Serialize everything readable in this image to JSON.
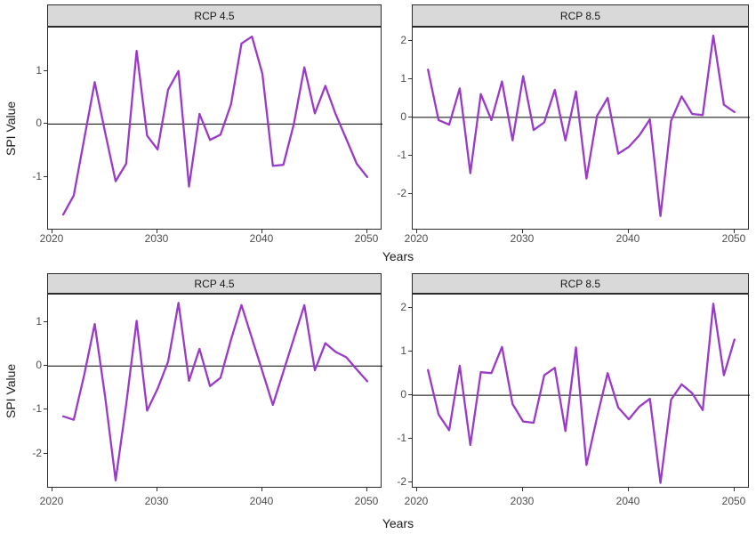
{
  "figure": {
    "y_axis_title": "SPI Value",
    "x_axis_title": "Years",
    "line_color": "#9A3AC8",
    "zero_line_color": "#000000",
    "strip_fill": "#d9d9d9",
    "border_color": "#2b2b2b",
    "tick_text_color": "#4d4d4d"
  },
  "chart_data": [
    {
      "type": "line",
      "facet": "RCP 4.5",
      "row": 0,
      "col": 0,
      "xlabel": "Years",
      "ylabel": "SPI Value",
      "xlim": [
        2019.55,
        2051.45
      ],
      "ylim": [
        -2.01,
        1.82
      ],
      "x_ticks": [
        2020,
        2030,
        2040,
        2050
      ],
      "y_ticks": [
        -1,
        0,
        1
      ],
      "hline": 0,
      "grid": false,
      "legend": "none",
      "x": [
        2021,
        2022,
        2023,
        2024,
        2025,
        2026,
        2027,
        2028,
        2029,
        2030,
        2031,
        2032,
        2033,
        2034,
        2035,
        2036,
        2037,
        2038,
        2039,
        2040,
        2041,
        2042,
        2043,
        2044,
        2045,
        2046,
        2047,
        2048,
        2049,
        2050
      ],
      "values": [
        -1.71,
        -1.35,
        -0.28,
        0.79,
        -0.16,
        -1.08,
        -0.75,
        1.38,
        -0.22,
        -0.48,
        0.65,
        1.0,
        -1.18,
        0.19,
        -0.3,
        -0.2,
        0.37,
        1.52,
        1.65,
        0.95,
        -0.79,
        -0.77,
        0.0,
        1.07,
        0.2,
        0.72,
        0.18,
        -0.28,
        -0.75,
        -1.0
      ]
    },
    {
      "type": "line",
      "facet": "RCP 8.5",
      "row": 0,
      "col": 1,
      "xlabel": "Years",
      "ylabel": "SPI Value",
      "xlim": [
        2019.55,
        2051.45
      ],
      "ylim": [
        -2.96,
        2.35
      ],
      "x_ticks": [
        2020,
        2030,
        2040,
        2050
      ],
      "y_ticks": [
        -2,
        -1,
        0,
        1,
        2
      ],
      "hline": 0,
      "grid": false,
      "legend": "none",
      "x": [
        2021,
        2022,
        2023,
        2024,
        2025,
        2026,
        2027,
        2028,
        2029,
        2030,
        2031,
        2032,
        2033,
        2034,
        2035,
        2036,
        2037,
        2038,
        2039,
        2040,
        2041,
        2042,
        2043,
        2044,
        2045,
        2046,
        2047,
        2048,
        2049,
        2050
      ],
      "values": [
        1.25,
        -0.07,
        -0.19,
        0.76,
        -1.46,
        0.61,
        -0.07,
        0.94,
        -0.6,
        1.08,
        -0.33,
        -0.13,
        0.72,
        -0.6,
        0.68,
        -1.6,
        0.04,
        0.51,
        -0.95,
        -0.77,
        -0.47,
        -0.05,
        -2.58,
        -0.09,
        0.55,
        0.09,
        0.06,
        2.14,
        0.33,
        0.14
      ]
    },
    {
      "type": "line",
      "facet": "RCP 4.5",
      "row": 1,
      "col": 0,
      "xlabel": "Years",
      "ylabel": "SPI Value",
      "xlim": [
        2019.55,
        2051.45
      ],
      "ylim": [
        -2.8,
        1.63
      ],
      "x_ticks": [
        2020,
        2030,
        2040,
        2050
      ],
      "y_ticks": [
        -2,
        -1,
        0,
        1
      ],
      "hline": 0,
      "grid": false,
      "legend": "none",
      "x": [
        2021,
        2022,
        2023,
        2024,
        2025,
        2026,
        2027,
        2028,
        2029,
        2030,
        2031,
        2032,
        2033,
        2034,
        2035,
        2036,
        2037,
        2038,
        2039,
        2040,
        2041,
        2042,
        2043,
        2044,
        2045,
        2046,
        2047,
        2048,
        2049,
        2050
      ],
      "values": [
        -1.15,
        -1.23,
        -0.2,
        0.96,
        -0.7,
        -2.61,
        -0.89,
        1.03,
        -1.02,
        -0.52,
        0.1,
        1.44,
        -0.34,
        0.39,
        -0.46,
        -0.27,
        0.6,
        1.39,
        0.63,
        -0.12,
        -0.89,
        -0.13,
        0.63,
        1.39,
        -0.1,
        0.52,
        0.32,
        0.2,
        -0.08,
        -0.35
      ]
    },
    {
      "type": "line",
      "facet": "RCP 8.5",
      "row": 1,
      "col": 1,
      "xlabel": "Years",
      "ylabel": "SPI Value",
      "xlim": [
        2019.55,
        2051.45
      ],
      "ylim": [
        -2.14,
        2.31
      ],
      "x_ticks": [
        2020,
        2030,
        2040,
        2050
      ],
      "y_ticks": [
        -2,
        -1,
        0,
        1,
        2
      ],
      "hline": 0,
      "grid": false,
      "legend": "none",
      "x": [
        2021,
        2022,
        2023,
        2024,
        2025,
        2026,
        2027,
        2028,
        2029,
        2030,
        2031,
        2032,
        2033,
        2034,
        2035,
        2036,
        2037,
        2038,
        2039,
        2040,
        2041,
        2042,
        2043,
        2044,
        2045,
        2046,
        2047,
        2048,
        2049,
        2050
      ],
      "values": [
        0.58,
        -0.44,
        -0.8,
        0.68,
        -1.14,
        0.53,
        0.51,
        1.11,
        -0.2,
        -0.6,
        -0.63,
        0.46,
        0.63,
        -0.82,
        1.1,
        -1.6,
        -0.5,
        0.51,
        -0.28,
        -0.55,
        -0.26,
        -0.08,
        -2.01,
        -0.1,
        0.25,
        0.05,
        -0.34,
        2.1,
        0.46,
        1.28
      ]
    }
  ]
}
